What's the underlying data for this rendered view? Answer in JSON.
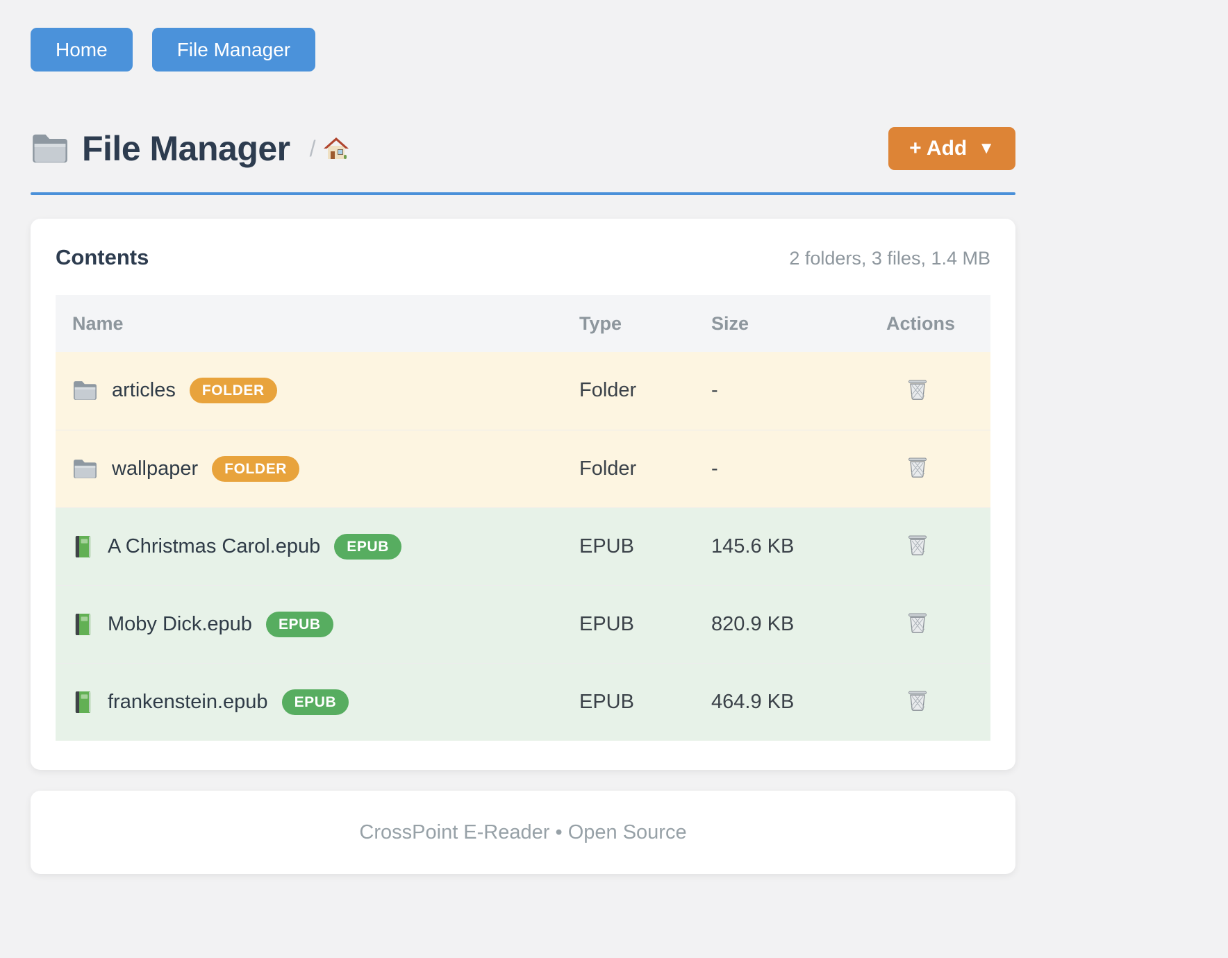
{
  "nav": {
    "buttons": [
      {
        "label": "Home"
      },
      {
        "label": "File Manager"
      }
    ]
  },
  "header": {
    "title": "File Manager",
    "title_icon": "folder-icon",
    "breadcrumb": {
      "separator": "/",
      "home_icon": "house-icon"
    },
    "add_button": {
      "label": "+ Add",
      "caret": "▼"
    }
  },
  "contents": {
    "title": "Contents",
    "summary": "2 folders, 3 files, 1.4 MB",
    "columns": [
      "Name",
      "Type",
      "Size",
      "Actions"
    ],
    "rows": [
      {
        "icon": "folder-icon",
        "kind": "folder",
        "name": "articles",
        "badge": "FOLDER",
        "type": "Folder",
        "size": "-"
      },
      {
        "icon": "folder-icon",
        "kind": "folder",
        "name": "wallpaper",
        "badge": "FOLDER",
        "type": "Folder",
        "size": "-"
      },
      {
        "icon": "book-icon",
        "kind": "epub",
        "name": "A Christmas Carol.epub",
        "badge": "EPUB",
        "type": "EPUB",
        "size": "145.6 KB"
      },
      {
        "icon": "book-icon",
        "kind": "epub",
        "name": "Moby Dick.epub",
        "badge": "EPUB",
        "type": "EPUB",
        "size": "820.9 KB"
      },
      {
        "icon": "book-icon",
        "kind": "epub",
        "name": "frankenstein.epub",
        "badge": "EPUB",
        "type": "EPUB",
        "size": "464.9 KB"
      }
    ],
    "action_icon": "trash-icon"
  },
  "footer": {
    "text": "CrossPoint E-Reader • Open Source"
  },
  "colors": {
    "nav_btn": "#4b92da",
    "accent": "#4a90d9",
    "add_btn": "#dd8436",
    "badge_folder": "#e8a33c",
    "badge_epub": "#57ad60",
    "row_folder": "#fdf5e1",
    "row_epub": "#e7f2e8",
    "title": "#2d3c4f",
    "muted": "#8d969d"
  }
}
